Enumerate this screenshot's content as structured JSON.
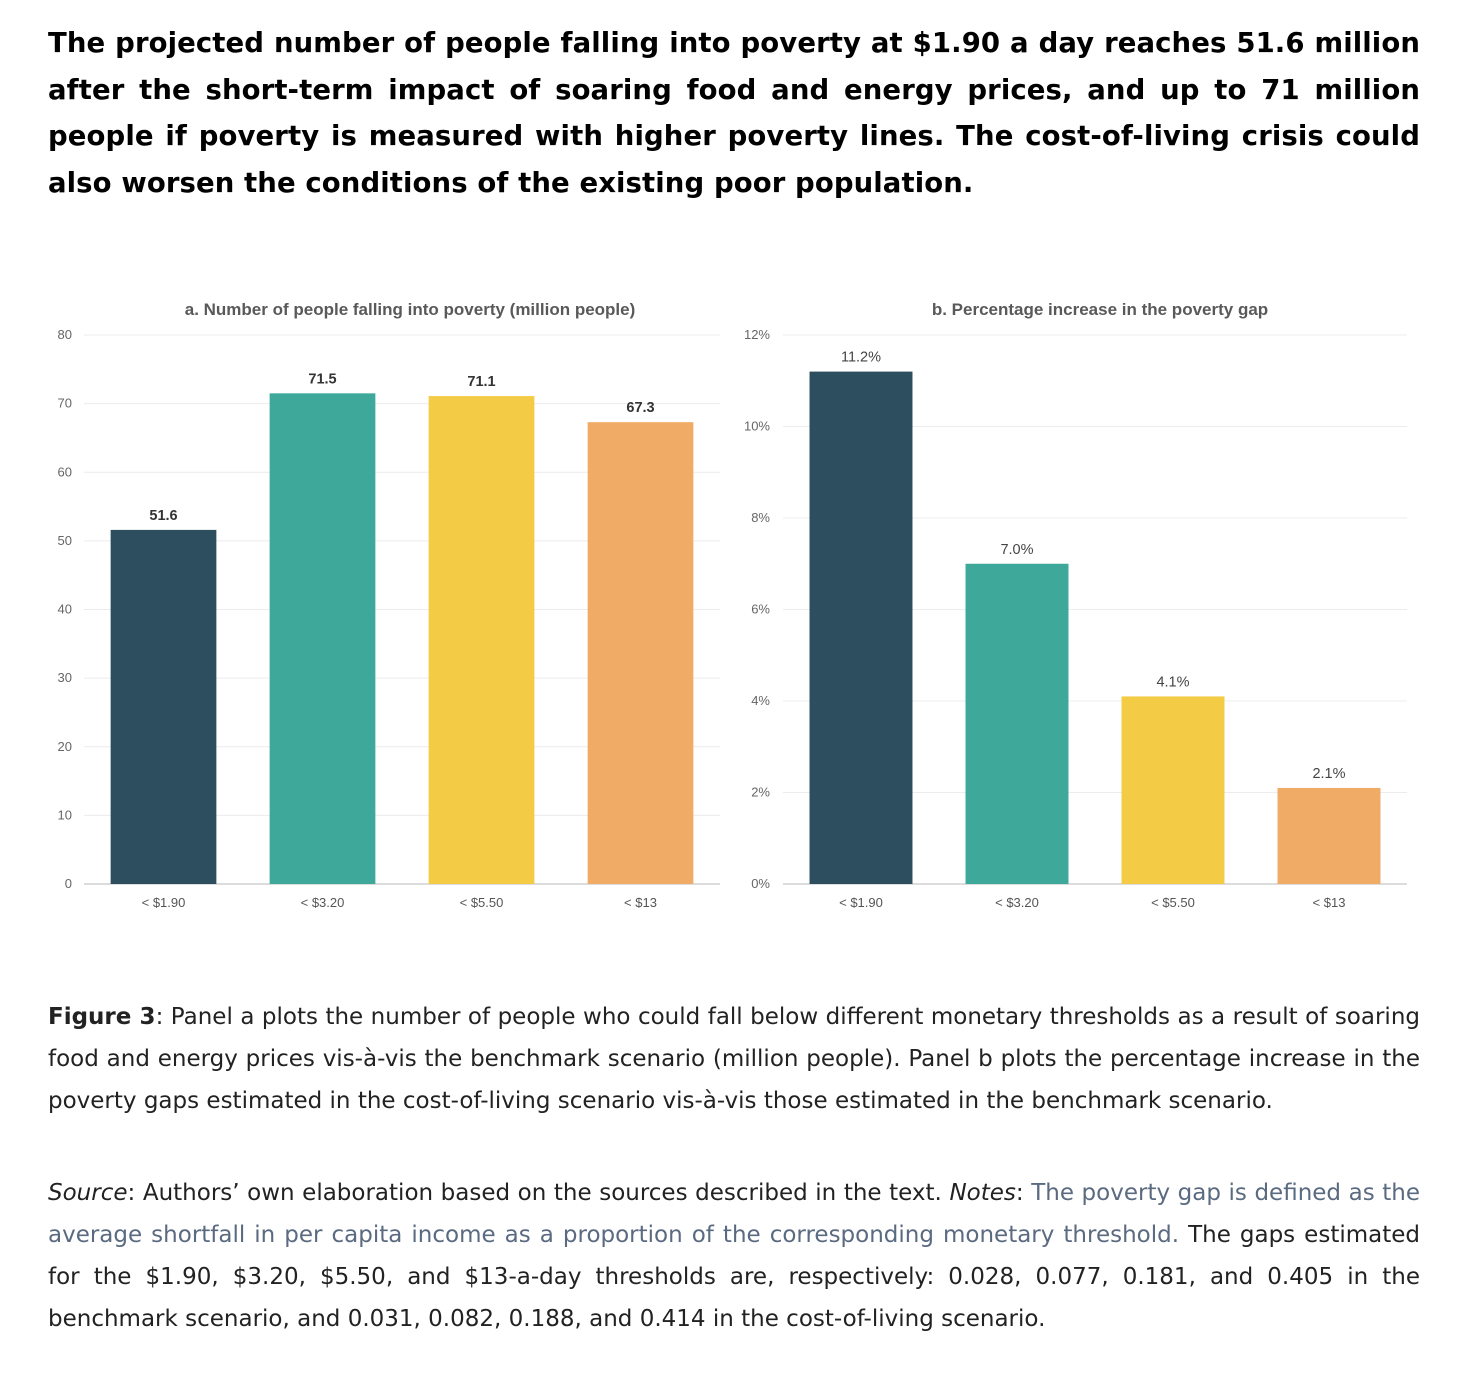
{
  "headline": "The projected number of people falling into poverty at $1.90 a day reaches 51.6 million after the short-term impact of soaring food and energy prices, and up to 71 million people if poverty is measured with higher poverty lines. The cost-of-living crisis could also worsen the conditions of the existing poor population.",
  "caption": {
    "label": "Figure 3",
    "text": ": Panel a plots the number of people who could fall below different monetary thresholds as a result of soaring food and energy prices vis-à-vis the benchmark scenario (million people). Panel b plots the percentage increase in the poverty gaps estimated in the cost-of-living scenario vis-à-vis those estimated in the benchmark scenario."
  },
  "source": {
    "source_label": "Source",
    "source_text": ": Authors’ own elaboration based on the sources described in the text. ",
    "notes_label": "Notes",
    "notes_colon": ": ",
    "linked_text": "The poverty gap is defined as the average shortfall in per capita income as a proportion of the corresponding monetary threshold.",
    "rest_text": " The gaps estimated for the $1.90, $3.20, $5.50, and $13-a-day thresholds are, respectively: 0.028, 0.077, 0.181, and 0.405 in the benchmark scenario, and 0.031, 0.082, 0.188, and 0.414 in the cost-of-living scenario."
  },
  "chart_data": [
    {
      "type": "bar",
      "title": "a. Number of people falling into poverty (million people)",
      "categories": [
        "< $1.90",
        "< $3.20",
        "< $5.50",
        "< $13"
      ],
      "values": [
        51.6,
        71.5,
        71.1,
        67.3
      ],
      "labels": [
        "51.6",
        "71.5",
        "71.1",
        "67.3"
      ],
      "colors": [
        "#2d4e5e",
        "#3ea89a",
        "#f3cb45",
        "#f0ab66"
      ],
      "ylim": [
        0,
        80
      ],
      "yticks": [
        0,
        10,
        20,
        30,
        40,
        50,
        60,
        70,
        80
      ],
      "ytick_labels": [
        "0",
        "10",
        "20",
        "30",
        "40",
        "50",
        "60",
        "70",
        "80"
      ],
      "xlabel": "",
      "ylabel": "",
      "grid": true
    },
    {
      "type": "bar",
      "title": "b. Percentage increase in the poverty gap",
      "categories": [
        "< $1.90",
        "< $3.20",
        "< $5.50",
        "< $13"
      ],
      "values": [
        11.2,
        7.0,
        4.1,
        2.1
      ],
      "labels": [
        "11.2%",
        "7.0%",
        "4.1%",
        "2.1%"
      ],
      "colors": [
        "#2d4e5e",
        "#3ea89a",
        "#f3cb45",
        "#f0ab66"
      ],
      "ylim": [
        0,
        12
      ],
      "yticks": [
        0,
        2,
        4,
        6,
        8,
        10,
        12
      ],
      "ytick_labels": [
        "0%",
        "2%",
        "4%",
        "6%",
        "8%",
        "10%",
        "12%"
      ],
      "xlabel": "",
      "ylabel": "",
      "grid": true
    }
  ]
}
